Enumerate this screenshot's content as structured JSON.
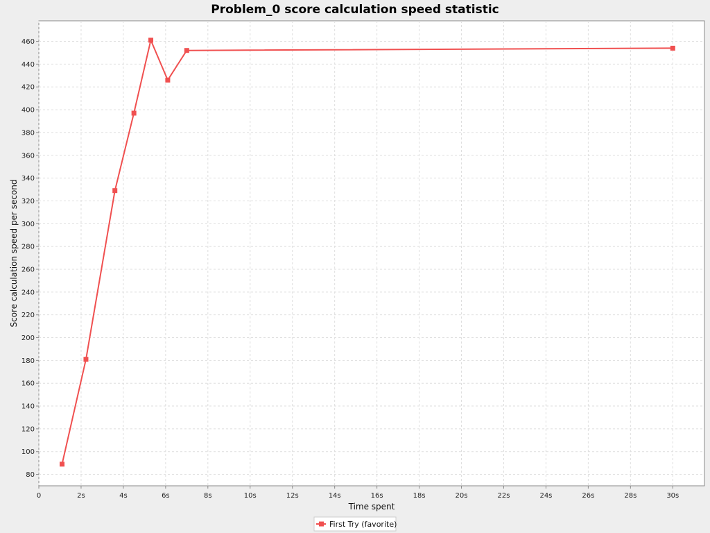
{
  "chart_data": {
    "type": "line",
    "title": "Problem_0 score calculation speed statistic",
    "xlabel": "Time spent",
    "ylabel": "Score calculation speed per second",
    "xlim": [
      0,
      31.5
    ],
    "ylim": [
      70,
      478
    ],
    "grid": true,
    "legend_position": "bottom-center",
    "x_ticks": [
      {
        "value": 0,
        "label": "0"
      },
      {
        "value": 2,
        "label": "2s"
      },
      {
        "value": 4,
        "label": "4s"
      },
      {
        "value": 6,
        "label": "6s"
      },
      {
        "value": 8,
        "label": "8s"
      },
      {
        "value": 10,
        "label": "10s"
      },
      {
        "value": 12,
        "label": "12s"
      },
      {
        "value": 14,
        "label": "14s"
      },
      {
        "value": 16,
        "label": "16s"
      },
      {
        "value": 18,
        "label": "18s"
      },
      {
        "value": 20,
        "label": "20s"
      },
      {
        "value": 22,
        "label": "22s"
      },
      {
        "value": 24,
        "label": "24s"
      },
      {
        "value": 26,
        "label": "26s"
      },
      {
        "value": 28,
        "label": "28s"
      },
      {
        "value": 30,
        "label": "30s"
      }
    ],
    "y_ticks": [
      80,
      100,
      120,
      140,
      160,
      180,
      200,
      220,
      240,
      260,
      280,
      300,
      320,
      340,
      360,
      380,
      400,
      420,
      440,
      460
    ],
    "series": [
      {
        "name": "First Try (favorite)",
        "color": "#f05050",
        "marker": "square",
        "points": [
          {
            "x": 1.1,
            "y": 89
          },
          {
            "x": 2.23,
            "y": 181
          },
          {
            "x": 3.6,
            "y": 329
          },
          {
            "x": 4.5,
            "y": 397
          },
          {
            "x": 5.3,
            "y": 461
          },
          {
            "x": 6.1,
            "y": 426
          },
          {
            "x": 7.0,
            "y": 452
          },
          {
            "x": 30.0,
            "y": 454
          }
        ]
      }
    ]
  }
}
